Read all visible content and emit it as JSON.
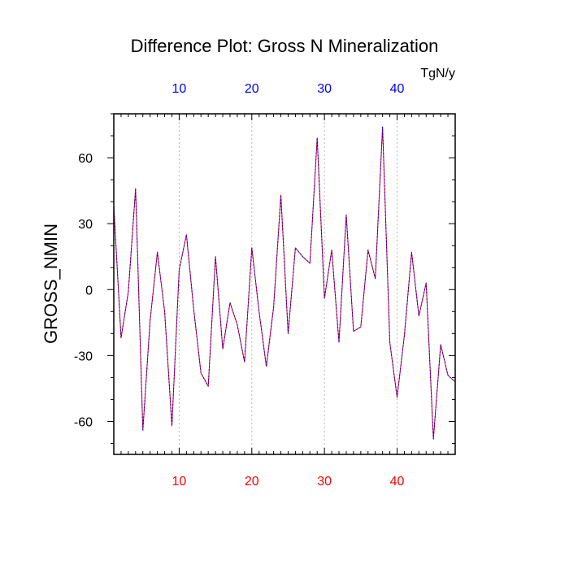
{
  "chart_data": {
    "type": "line",
    "title": "Difference Plot: Gross N Mineralization",
    "units": "TgN/y",
    "ylabel": "GROSS_NMIN",
    "xlabel": "",
    "xlim": [
      1,
      48
    ],
    "ylim": [
      -75,
      80
    ],
    "x_ticks": [
      10,
      20,
      30,
      40
    ],
    "y_ticks": [
      -60,
      -30,
      0,
      30,
      60
    ],
    "grid": "vertical dashed at major x ticks",
    "colors": {
      "bottom_tick_labels": "#ff0000",
      "top_tick_labels": "#0000ff",
      "series_a": "#ff0000",
      "series_b": "#0000ff"
    },
    "series": [
      {
        "name": "series_a",
        "x": [
          1,
          2,
          3,
          4,
          5,
          6,
          7,
          8,
          9,
          10,
          11,
          12,
          13,
          14,
          15,
          16,
          17,
          18,
          19,
          20,
          21,
          22,
          23,
          24,
          25,
          26,
          27,
          28,
          29,
          30,
          31,
          32,
          33,
          34,
          35,
          36,
          37,
          38,
          39,
          40,
          41,
          42,
          43,
          44,
          45,
          46,
          47,
          48
        ],
        "values": [
          38,
          -22,
          -1,
          46,
          -64,
          -14,
          17,
          -10,
          -62,
          9,
          25,
          -9,
          -38,
          -44,
          15,
          -27,
          -6,
          -16,
          -33,
          19,
          -10,
          -35,
          -8,
          43,
          -20,
          19,
          15,
          12,
          69,
          -4,
          18,
          -24,
          34,
          -19,
          -17,
          18,
          5,
          74,
          -24,
          -49,
          -21,
          17,
          -12,
          3,
          -68,
          -25,
          -39,
          -42
        ]
      },
      {
        "name": "series_b",
        "x": [
          1,
          2,
          3,
          4,
          5,
          6,
          7,
          8,
          9,
          10,
          11,
          12,
          13,
          14,
          15,
          16,
          17,
          18,
          19,
          20,
          21,
          22,
          23,
          24,
          25,
          26,
          27,
          28,
          29,
          30,
          31,
          32,
          33,
          34,
          35,
          36,
          37,
          38,
          39,
          40,
          41,
          42,
          43,
          44,
          45,
          46,
          47,
          48
        ],
        "values": [
          38,
          -22,
          -1,
          46,
          -64,
          -14,
          17,
          -10,
          -62,
          9,
          25,
          -9,
          -38,
          -44,
          15,
          -27,
          -6,
          -16,
          -33,
          19,
          -10,
          -35,
          -8,
          43,
          -20,
          19,
          15,
          12,
          69,
          -4,
          18,
          -24,
          34,
          -19,
          -17,
          18,
          5,
          74,
          -24,
          -49,
          -21,
          17,
          -12,
          3,
          -68,
          -25,
          -39,
          -42
        ]
      }
    ]
  }
}
